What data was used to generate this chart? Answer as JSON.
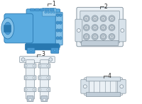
{
  "bg_color": "#ffffff",
  "blue_fill": "#5aabe0",
  "blue_mid": "#4a9ad4",
  "blue_dark": "#2878b0",
  "blue_light": "#82c0e8",
  "blue_lighter": "#aad4f0",
  "gray_line": "#7a8a96",
  "gray_fill": "#d8e2ea",
  "gray_light": "#eaf0f5",
  "gray_mid": "#c0cdd8",
  "white": "#ffffff",
  "label_color": "#222222",
  "label_fontsize": 5.5,
  "fig_width": 2.0,
  "fig_height": 1.47,
  "dpi": 100
}
